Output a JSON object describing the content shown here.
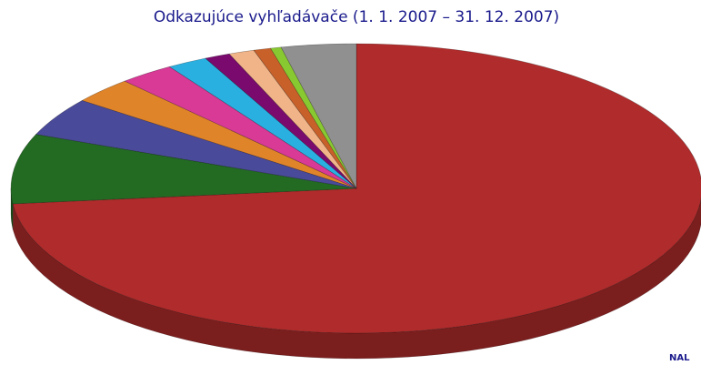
{
  "chart_data": {
    "type": "pie",
    "title": "Odkazujúce vyhľadávače (1. 1. 2007 – 31. 12. 2007)",
    "values": [
      73.3,
      7.8,
      4.3,
      2.9,
      2.6,
      1.9,
      1.2,
      1.2,
      0.8,
      0.5,
      3.5
    ],
    "colors": [
      "#b02b2b",
      "#236b23",
      "#4a4a9a",
      "#e0842a",
      "#d83a96",
      "#2ab0e0",
      "#7a0a6e",
      "#f0b488",
      "#c8602a",
      "#88c830",
      "#909090"
    ],
    "note": "NAL"
  }
}
